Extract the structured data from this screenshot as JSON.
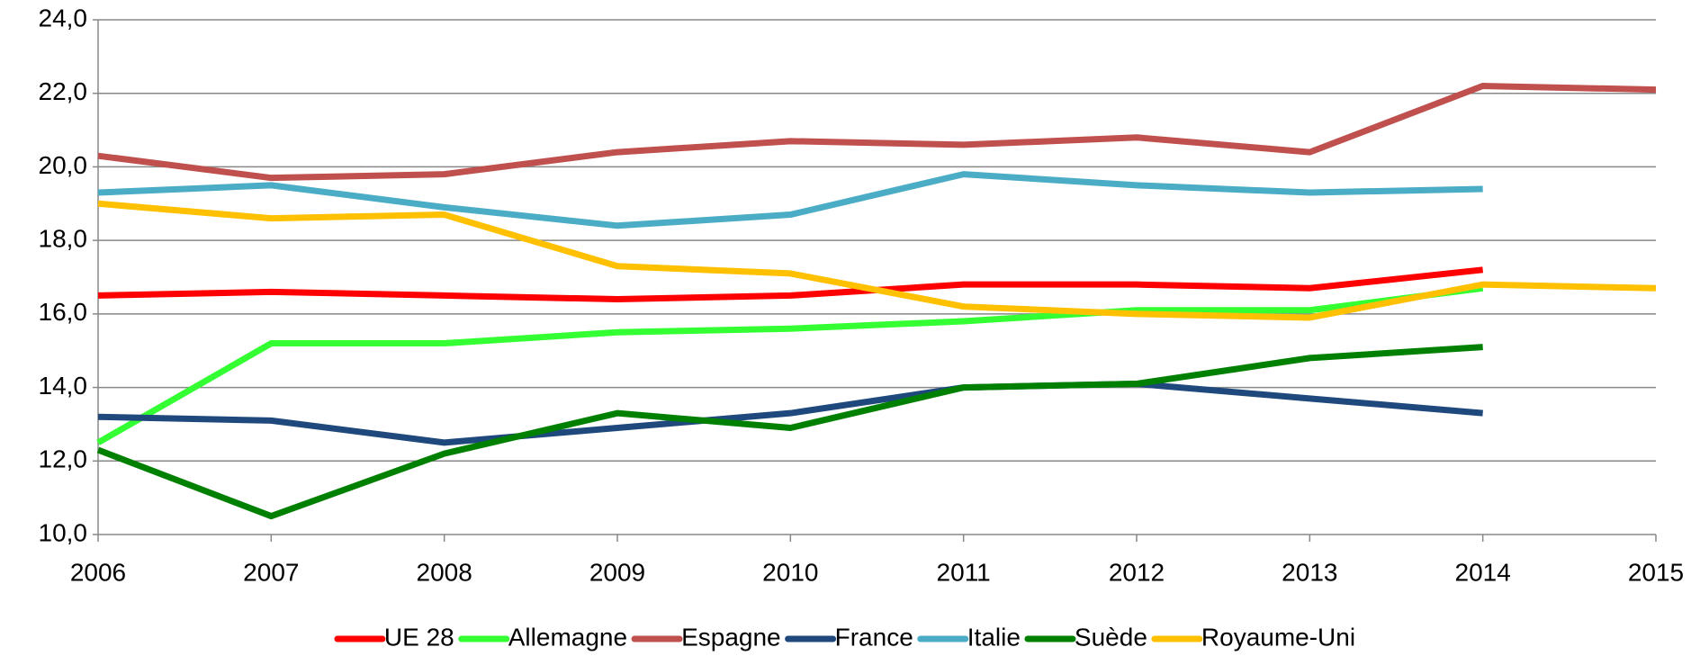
{
  "chart_data": {
    "type": "line",
    "x": [
      2006,
      2007,
      2008,
      2009,
      2010,
      2011,
      2012,
      2013,
      2014,
      2015
    ],
    "xlim": [
      2006,
      2015
    ],
    "xticks": [
      2006,
      2007,
      2008,
      2009,
      2010,
      2011,
      2012,
      2013,
      2014,
      2015
    ],
    "ylim": [
      10,
      24
    ],
    "yticks": [
      {
        "value": 10,
        "label": "10,0"
      },
      {
        "value": 12,
        "label": "12,0"
      },
      {
        "value": 14,
        "label": "14,0"
      },
      {
        "value": 16,
        "label": "16,0"
      },
      {
        "value": 18,
        "label": "18,0"
      },
      {
        "value": 20,
        "label": "20,0"
      },
      {
        "value": 22,
        "label": "22,0"
      },
      {
        "value": 24,
        "label": "24,0"
      }
    ],
    "grid": true,
    "legend": "bottom",
    "series": [
      {
        "name": "UE 28",
        "color": "#ff0000",
        "values": [
          16.5,
          16.6,
          16.5,
          16.4,
          16.5,
          16.8,
          16.8,
          16.7,
          17.2,
          null
        ]
      },
      {
        "name": "Allemagne",
        "color": "#33ff33",
        "values": [
          12.5,
          15.2,
          15.2,
          15.5,
          15.6,
          15.8,
          16.1,
          16.1,
          16.7,
          null
        ]
      },
      {
        "name": "Espagne",
        "color": "#c0504d",
        "values": [
          20.3,
          19.7,
          19.8,
          20.4,
          20.7,
          20.6,
          20.8,
          20.4,
          22.2,
          22.1
        ]
      },
      {
        "name": "France",
        "color": "#1f497d",
        "values": [
          13.2,
          13.1,
          12.5,
          12.9,
          13.3,
          14.0,
          14.1,
          13.7,
          13.3,
          null
        ]
      },
      {
        "name": "Italie",
        "color": "#4bacc6",
        "values": [
          19.3,
          19.5,
          18.9,
          18.4,
          18.7,
          19.8,
          19.5,
          19.3,
          19.4,
          null
        ]
      },
      {
        "name": "Suède",
        "color": "#008000",
        "values": [
          12.3,
          10.5,
          12.2,
          13.3,
          12.9,
          14.0,
          14.1,
          14.8,
          15.1,
          null
        ]
      },
      {
        "name": "Royaume-Uni",
        "color": "#ffc000",
        "values": [
          19.0,
          18.6,
          18.7,
          17.3,
          17.1,
          16.2,
          16.0,
          15.9,
          16.8,
          16.7
        ]
      }
    ]
  }
}
